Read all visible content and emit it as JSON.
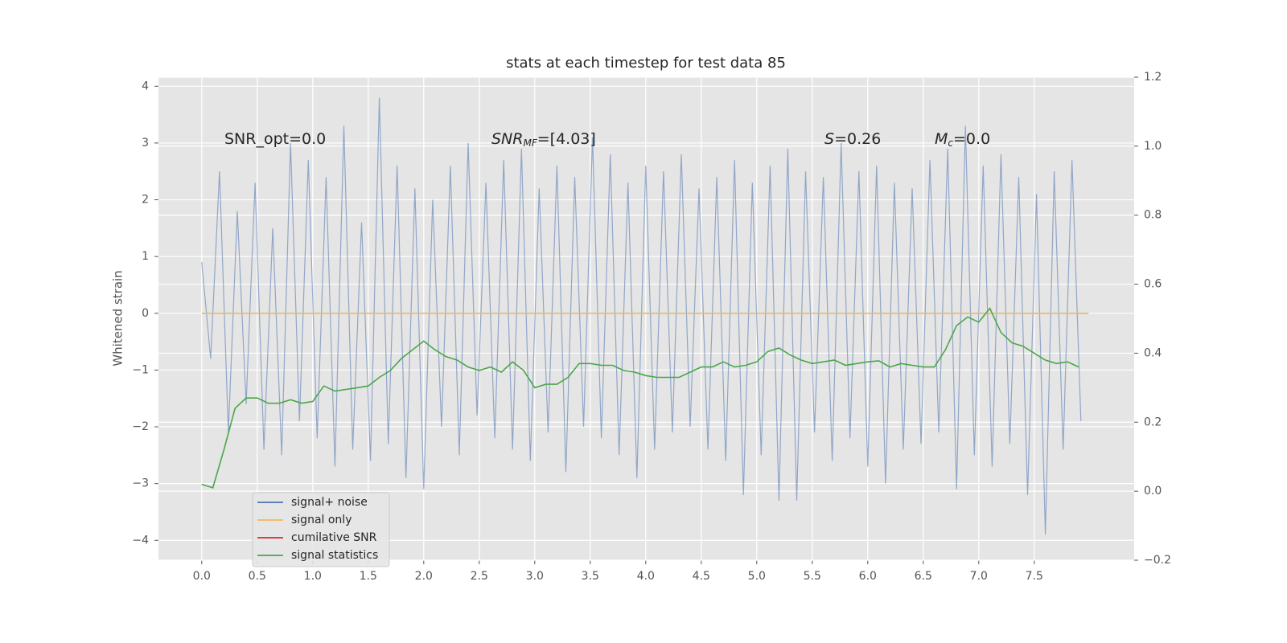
{
  "chart_data": {
    "type": "line",
    "title": "stats at each timestep for test data 85",
    "ylabel": "Whitened strain",
    "xlim": [
      -0.39,
      8.4
    ],
    "ylim": [
      -4.35,
      4.16
    ],
    "y2lim": [
      -0.2,
      1.2
    ],
    "xticks": [
      {
        "value": 0,
        "label": "0.0"
      },
      {
        "value": 0.5,
        "label": "0.5"
      },
      {
        "value": 1,
        "label": "1.0"
      },
      {
        "value": 1.5,
        "label": "1.5"
      },
      {
        "value": 2,
        "label": "2.0"
      },
      {
        "value": 2.5,
        "label": "2.5"
      },
      {
        "value": 3,
        "label": "3.0"
      },
      {
        "value": 3.5,
        "label": "3.5"
      },
      {
        "value": 4,
        "label": "4.0"
      },
      {
        "value": 4.5,
        "label": "4.5"
      },
      {
        "value": 5,
        "label": "5.0"
      },
      {
        "value": 5.5,
        "label": "5.5"
      },
      {
        "value": 6,
        "label": "6.0"
      },
      {
        "value": 6.5,
        "label": "6.5"
      },
      {
        "value": 7,
        "label": "7.0"
      },
      {
        "value": 7.5,
        "label": "7.5"
      }
    ],
    "yticks": [
      {
        "value": -4,
        "label": "−4"
      },
      {
        "value": -3,
        "label": "−3"
      },
      {
        "value": -2,
        "label": "−2"
      },
      {
        "value": -1,
        "label": "−1"
      },
      0,
      1,
      2,
      3,
      4
    ],
    "y2ticks": [
      {
        "value": -0.2,
        "label": "−0.2"
      },
      {
        "value": 0,
        "label": "0.0"
      },
      0.2,
      0.4,
      0.6,
      0.8,
      {
        "value": 1,
        "label": "1.0"
      },
      1.2
    ],
    "grid": true,
    "legend": "lower left",
    "annotations": [
      {
        "main": "SNR_opt=0.0"
      },
      {
        "main": "SNR",
        "sub": "MF",
        "rest": "=[4.03]"
      },
      {
        "main": "S",
        "rest": "=0.26"
      },
      {
        "main": "M",
        "sub": "c",
        "rest": "=0.0"
      }
    ],
    "series": [
      {
        "name": "signal+ noise",
        "color": "#4c72b0",
        "x": [
          0,
          0.08,
          0.16,
          0.24,
          0.32,
          0.4,
          0.48,
          0.56,
          0.64,
          0.72,
          0.8,
          0.88,
          0.96,
          1.04,
          1.12,
          1.2,
          1.28,
          1.36,
          1.44,
          1.52,
          1.6,
          1.68,
          1.76,
          1.84,
          1.92,
          2,
          2.08,
          2.16,
          2.24,
          2.32,
          2.4,
          2.48,
          2.56,
          2.64,
          2.72,
          2.8,
          2.88,
          2.96,
          3.04,
          3.12,
          3.2,
          3.28,
          3.36,
          3.44,
          3.52,
          3.6,
          3.68,
          3.76,
          3.84,
          3.92,
          4,
          4.08,
          4.16,
          4.24,
          4.32,
          4.4,
          4.48,
          4.56,
          4.64,
          4.72,
          4.8,
          4.88,
          4.96,
          5.04,
          5.12,
          5.2,
          5.28,
          5.36,
          5.44,
          5.52,
          5.6,
          5.68,
          5.76,
          5.84,
          5.92,
          6,
          6.08,
          6.16,
          6.24,
          6.32,
          6.4,
          6.48,
          6.56,
          6.64,
          6.72,
          6.8,
          6.88,
          6.96,
          7.04,
          7.12,
          7.2,
          7.28,
          7.36,
          7.44,
          7.52,
          7.6,
          7.68,
          7.76,
          7.84,
          7.92
        ],
        "values": [
          0.9,
          -0.8,
          2.5,
          -2.1,
          1.8,
          -1.6,
          2.3,
          -2.4,
          1.5,
          -2.5,
          3.0,
          -1.9,
          2.7,
          -2.2,
          2.4,
          -2.7,
          3.3,
          -2.4,
          1.6,
          -2.6,
          3.8,
          -2.3,
          2.6,
          -2.9,
          2.2,
          -3.1,
          2.0,
          -2.0,
          2.6,
          -2.5,
          3.0,
          -1.8,
          2.3,
          -2.2,
          2.7,
          -2.4,
          2.9,
          -2.6,
          2.2,
          -2.1,
          2.6,
          -2.8,
          2.4,
          -2.0,
          3.1,
          -2.2,
          2.8,
          -2.5,
          2.3,
          -2.9,
          2.6,
          -2.4,
          2.5,
          -2.1,
          2.8,
          -2.0,
          2.2,
          -2.4,
          2.4,
          -2.6,
          2.7,
          -3.2,
          2.3,
          -2.5,
          2.6,
          -3.3,
          2.9,
          -3.3,
          2.5,
          -2.1,
          2.4,
          -2.6,
          3.0,
          -2.2,
          2.5,
          -2.7,
          2.6,
          -3.0,
          2.3,
          -2.4,
          2.2,
          -2.3,
          2.7,
          -2.1,
          2.9,
          -3.1,
          3.3,
          -2.5,
          2.6,
          -2.7,
          2.8,
          -2.3,
          2.4,
          -3.2,
          2.1,
          -3.9,
          2.5,
          -2.4,
          2.7,
          -1.9
        ]
      },
      {
        "name": "signal only",
        "color": "#f0b95a",
        "x": [
          0,
          7.99
        ],
        "values": [
          0,
          0
        ]
      },
      {
        "name": "cumilative SNR",
        "color": "#d62728",
        "x": [],
        "values": []
      },
      {
        "name": "signal statistics",
        "color": "#4aa64a",
        "axis": "y2",
        "x": [
          0,
          0.1,
          0.2,
          0.3,
          0.4,
          0.5,
          0.6,
          0.7,
          0.8,
          0.9,
          1,
          1.1,
          1.2,
          1.3,
          1.4,
          1.5,
          1.6,
          1.7,
          1.8,
          1.9,
          2,
          2.1,
          2.2,
          2.3,
          2.4,
          2.5,
          2.6,
          2.7,
          2.8,
          2.9,
          3,
          3.1,
          3.2,
          3.3,
          3.4,
          3.5,
          3.6,
          3.7,
          3.8,
          3.9,
          4,
          4.1,
          4.2,
          4.3,
          4.4,
          4.5,
          4.6,
          4.7,
          4.8,
          4.9,
          5,
          5.1,
          5.2,
          5.3,
          5.4,
          5.5,
          5.6,
          5.7,
          5.8,
          5.9,
          6,
          6.1,
          6.2,
          6.3,
          6.4,
          6.5,
          6.6,
          6.7,
          6.8,
          6.9,
          7,
          7.1,
          7.2,
          7.3,
          7.4,
          7.5,
          7.6,
          7.7,
          7.8,
          7.9
        ],
        "values": [
          0.02,
          0.01,
          0.12,
          0.24,
          0.27,
          0.27,
          0.255,
          0.255,
          0.265,
          0.255,
          0.26,
          0.305,
          0.29,
          0.295,
          0.3,
          0.305,
          0.33,
          0.35,
          0.385,
          0.41,
          0.435,
          0.41,
          0.39,
          0.38,
          0.36,
          0.35,
          0.36,
          0.345,
          0.375,
          0.35,
          0.3,
          0.31,
          0.31,
          0.33,
          0.37,
          0.37,
          0.365,
          0.365,
          0.35,
          0.345,
          0.335,
          0.33,
          0.33,
          0.33,
          0.345,
          0.36,
          0.36,
          0.375,
          0.36,
          0.365,
          0.375,
          0.405,
          0.415,
          0.395,
          0.38,
          0.37,
          0.375,
          0.38,
          0.365,
          0.37,
          0.375,
          0.378,
          0.36,
          0.37,
          0.365,
          0.36,
          0.36,
          0.41,
          0.48,
          0.505,
          0.49,
          0.53,
          0.46,
          0.43,
          0.42,
          0.4,
          0.38,
          0.37,
          0.375,
          0.36
        ]
      }
    ]
  }
}
